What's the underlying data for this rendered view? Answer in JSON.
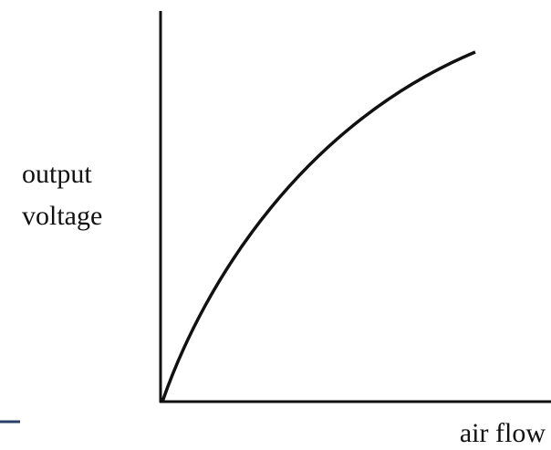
{
  "y_axis_label": {
    "lines": [
      "output",
      "voltage"
    ]
  },
  "x_axis_label": "air flow"
}
